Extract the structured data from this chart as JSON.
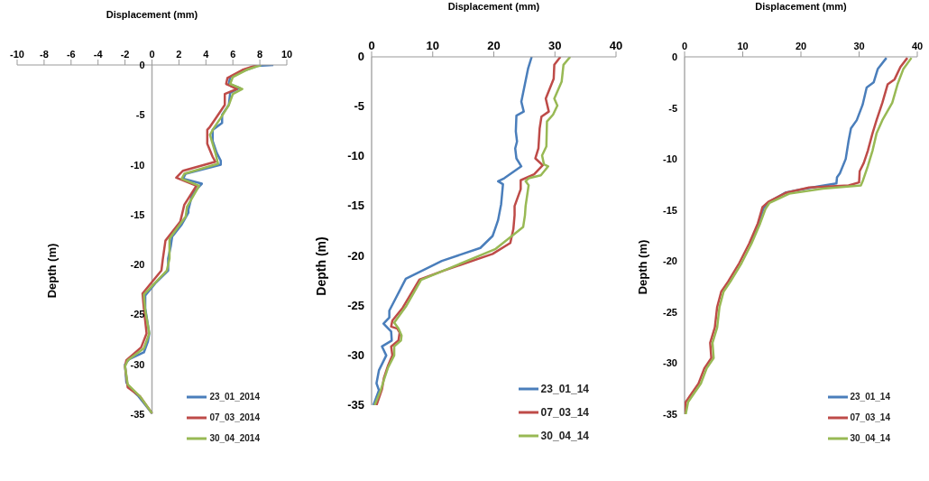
{
  "chart_data": [
    {
      "type": "line",
      "xlabel": "Displacement (mm)",
      "ylabel": "Depth (m)",
      "xlim": [
        -10,
        10
      ],
      "xticks": [
        -10,
        -8,
        -6,
        -4,
        -2,
        0,
        2,
        4,
        6,
        8,
        10
      ],
      "ylim": [
        -35,
        0
      ],
      "yticks": [
        -35,
        -30,
        -25,
        -20,
        -15,
        -10,
        -5,
        0
      ],
      "legend": "bottom right",
      "marker": "none",
      "grid": false,
      "series": [
        {
          "name": "23_01_2014",
          "color": "#4a7ebb",
          "x": [
            9.0,
            7.8,
            6.8,
            5.8,
            5.7,
            6.5,
            5.8,
            5.7,
            5.2,
            5.2,
            4.5,
            4.5,
            4.8,
            5.1,
            5.1,
            2.5,
            2.3,
            3.7,
            3.0,
            2.7,
            2.7,
            2.2,
            1.5,
            1.4,
            1.2,
            1.2,
            0.3,
            -0.5,
            -0.5,
            -0.4,
            -0.2,
            -0.3,
            -0.6,
            -1.7,
            -2.0,
            -1.9,
            -1.7,
            -1.0,
            0
          ],
          "values": [
            0,
            -0.1,
            -0.6,
            -1.2,
            -1.9,
            -2.3,
            -2.8,
            -4.0,
            -5.0,
            -5.8,
            -6.5,
            -7.6,
            -8.8,
            -9.6,
            -10.0,
            -10.9,
            -11.4,
            -11.9,
            -12.9,
            -14.5,
            -14.8,
            -16.0,
            -17.2,
            -18.1,
            -19.4,
            -20.6,
            -21.8,
            -23.1,
            -24.4,
            -25.2,
            -26.9,
            -27.7,
            -28.8,
            -29.5,
            -30.0,
            -31.8,
            -32.3,
            -33.2,
            -34.9
          ]
        },
        {
          "name": "07_03_2014",
          "color": "#be4b48",
          "x": [
            7.8,
            6.7,
            5.6,
            5.5,
            6.3,
            5.4,
            5.4,
            4.7,
            4.3,
            4.1,
            4.1,
            4.5,
            4.7,
            2.3,
            1.8,
            3.3,
            2.4,
            2.1,
            1.0,
            0.8,
            0.7,
            -0.7,
            -0.6,
            -0.4,
            -0.8,
            -1.9,
            -2.0,
            -1.8,
            -0.9,
            0
          ],
          "values": [
            0,
            -0.5,
            -1.3,
            -1.9,
            -2.4,
            -2.9,
            -4.0,
            -5.4,
            -6.2,
            -6.5,
            -7.9,
            -9.2,
            -9.7,
            -10.6,
            -11.3,
            -12.1,
            -14.0,
            -15.7,
            -17.6,
            -19.5,
            -20.6,
            -22.9,
            -24.4,
            -26.9,
            -28.3,
            -29.6,
            -30.2,
            -32.3,
            -33.2,
            -34.9
          ]
        },
        {
          "name": "30_04_2014",
          "color": "#98b954",
          "x": [
            8.1,
            7.0,
            6.0,
            5.8,
            6.7,
            6.0,
            5.7,
            5.1,
            4.6,
            4.3,
            4.7,
            4.9,
            2.4,
            2.2,
            3.5,
            2.6,
            2.5,
            1.3,
            1.3,
            1.1,
            -0.6,
            -0.5,
            -0.2,
            -0.6,
            -1.8,
            -2.0,
            -1.8,
            -0.9,
            0
          ],
          "values": [
            0,
            -0.5,
            -1.2,
            -1.9,
            -2.4,
            -2.9,
            -4.0,
            -5.3,
            -6.3,
            -7.0,
            -8.8,
            -9.9,
            -10.9,
            -11.4,
            -12.1,
            -14.2,
            -15.2,
            -17.4,
            -19.4,
            -20.6,
            -23.0,
            -24.6,
            -26.9,
            -28.4,
            -29.6,
            -30.2,
            -32.0,
            -33.2,
            -34.9
          ]
        }
      ]
    },
    {
      "type": "line",
      "xlabel": "Displacement (mm)",
      "ylabel": "Depth (m)",
      "xlim": [
        0,
        40
      ],
      "xticks": [
        0,
        10,
        20,
        30,
        40
      ],
      "ylim": [
        -35,
        0
      ],
      "yticks": [
        -35,
        -30,
        -25,
        -20,
        -15,
        -10,
        -5,
        0
      ],
      "legend": "bottom right",
      "marker": "none",
      "grid": false,
      "series": [
        {
          "name": "23_01_14",
          "color": "#4a7ebb",
          "x": [
            26.2,
            25.6,
            24.5,
            24.9,
            23.7,
            23.6,
            23.8,
            23.5,
            23.7,
            24.5,
            21.7,
            20.7,
            21.5,
            21.2,
            20.7,
            20.2,
            19.8,
            17.8,
            11.5,
            5.6,
            2.9,
            2.9,
            1.95,
            3.2,
            3.3,
            1.7,
            2.4,
            1.2,
            0.8,
            1.2,
            0.3
          ],
          "values": [
            0,
            -1.2,
            -4.5,
            -5.5,
            -5.9,
            -7.5,
            -8.5,
            -9.2,
            -10.2,
            -11,
            -12.2,
            -12.5,
            -12.8,
            -14.8,
            -16.4,
            -17.3,
            -18.0,
            -19.2,
            -20.5,
            -22.3,
            -25.5,
            -26.2,
            -26.8,
            -27.6,
            -28.5,
            -29.1,
            -30.0,
            -31.5,
            -32.8,
            -33.5,
            -35
          ]
        },
        {
          "name": "07_03_14",
          "color": "#be4b48",
          "x": [
            30.9,
            29.9,
            29.8,
            28.5,
            29.0,
            27.8,
            27.5,
            27.3,
            26.8,
            28.0,
            26.6,
            24.4,
            24.4,
            23.4,
            23.4,
            23.2,
            22.7,
            19.8,
            11.7,
            7.8,
            5.1,
            3.4,
            3.2,
            4.2,
            4.6,
            4.4,
            3.2,
            3.4,
            2.7,
            2.0,
            1.7,
            0.8
          ],
          "values": [
            0,
            -0.8,
            -2.2,
            -4.2,
            -5.5,
            -6,
            -7.2,
            -9.2,
            -10.2,
            -10.9,
            -11.8,
            -12.4,
            -13.3,
            -15,
            -15.9,
            -17.3,
            -18.7,
            -19.8,
            -21.5,
            -22.4,
            -25.2,
            -26.5,
            -27.1,
            -27.3,
            -27.7,
            -28.5,
            -29.1,
            -30,
            -31,
            -32.3,
            -33.4,
            -35
          ]
        },
        {
          "name": "30_04_14",
          "color": "#98b954",
          "x": [
            32.5,
            31.4,
            31.1,
            29.9,
            30.4,
            29.7,
            28.7,
            28.6,
            27.9,
            28.2,
            28.9,
            27.7,
            25.7,
            25.2,
            25.7,
            25.2,
            25.1,
            24.8,
            20.3,
            12.5,
            8.1,
            5.6,
            3.7,
            4.4,
            4.9,
            4.8,
            3.7,
            3.7,
            2.7,
            2.0,
            1.5,
            0.5
          ],
          "values": [
            0,
            -0.8,
            -2.5,
            -4.2,
            -4.9,
            -5.8,
            -6.5,
            -9,
            -9.9,
            -10.8,
            -11,
            -11.9,
            -12.2,
            -12.5,
            -12.9,
            -15,
            -15.9,
            -17.1,
            -19.3,
            -21.3,
            -22.4,
            -25.1,
            -26.7,
            -27.3,
            -28.0,
            -28.5,
            -29.1,
            -30,
            -31.2,
            -32.5,
            -33.5,
            -35
          ]
        }
      ]
    },
    {
      "type": "line",
      "xlabel": "Displacement (mm)",
      "ylabel": "Depth (m)",
      "xlim": [
        0,
        40
      ],
      "xticks": [
        0,
        10,
        20,
        30,
        40
      ],
      "ylim": [
        -35,
        0
      ],
      "yticks": [
        -35,
        -30,
        -25,
        -20,
        -15,
        -10,
        -5,
        0
      ],
      "legend": "bottom right",
      "marker": "none",
      "grid": false,
      "series": [
        {
          "name": "23_01_14",
          "color": "#4a7ebb",
          "x": [
            34.7,
            33.2,
            32.5,
            31.3,
            30.6,
            29.6,
            28.6,
            28.2,
            27.7,
            26.7,
            26.2,
            26.1,
            22.8,
            19.0,
            17.3,
            14.6,
            13.6,
            12.7,
            11.2
          ],
          "values": [
            -0.1,
            -1.2,
            -2.5,
            -3,
            -4.7,
            -6.2,
            -7,
            -8.2,
            -10,
            -11.4,
            -11.8,
            -12.4,
            -12.7,
            -13.1,
            -13.3,
            -14.2,
            -14.8,
            -16.3,
            -18.3
          ]
        },
        {
          "name": "07_03_14",
          "color": "#be4b48",
          "x": [
            38.3,
            37.1,
            36.1,
            34.9,
            34.0,
            33.0,
            32.3,
            31.5,
            30.8,
            30.1,
            30.0,
            28.2,
            21.4,
            17.5,
            14.4,
            13.4,
            12.6,
            11.1,
            9.4,
            7.5,
            6.3,
            5.6,
            5.2,
            4.4,
            4.6,
            3.4,
            2.4,
            0.2,
            0.1
          ],
          "values": [
            -0.1,
            -1,
            -2.2,
            -2.7,
            -4.5,
            -6.2,
            -7.5,
            -9.2,
            -10.4,
            -11.2,
            -12.3,
            -12.6,
            -12.8,
            -13.3,
            -14.2,
            -14.7,
            -16.3,
            -18.3,
            -20.2,
            -22.0,
            -23.0,
            -24.5,
            -26.5,
            -28.0,
            -29.5,
            -30.5,
            -32.0,
            -33.8,
            -35
          ]
        },
        {
          "name": "30_04_14",
          "color": "#98b954",
          "x": [
            39.0,
            37.6,
            36.6,
            35.7,
            34.0,
            33.0,
            32.3,
            31.5,
            30.6,
            30.3,
            23.8,
            18.0,
            14.6,
            13.9,
            13.0,
            11.5,
            9.8,
            7.9,
            6.7,
            6.0,
            5.6,
            4.8,
            5.0,
            3.8,
            2.8,
            0.6,
            0.2
          ],
          "values": [
            -0.1,
            -1.2,
            -2.7,
            -4.5,
            -6.2,
            -7.5,
            -9.2,
            -10.7,
            -12.2,
            -12.6,
            -12.9,
            -13.4,
            -14.3,
            -14.9,
            -16.3,
            -18.3,
            -20.2,
            -22.0,
            -23.0,
            -24.5,
            -26.5,
            -28.0,
            -29.5,
            -30.5,
            -32.0,
            -33.8,
            -35
          ]
        }
      ]
    }
  ]
}
